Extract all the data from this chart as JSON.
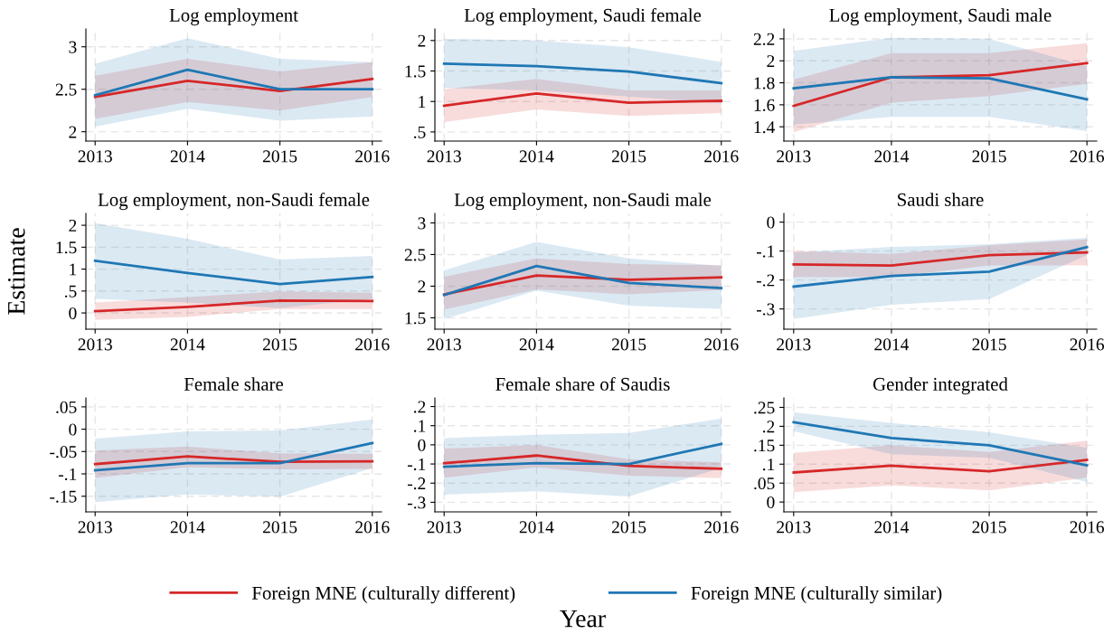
{
  "chart_data": [
    {
      "type": "line",
      "title": "Log employment",
      "x": [
        2013,
        2014,
        2015,
        2016
      ],
      "xlim": [
        2012.9,
        2016.1
      ],
      "xticks": [
        2013,
        2014,
        2015,
        2016
      ],
      "ylim": [
        1.89,
        3.21
      ],
      "yticks": [
        2,
        2.5,
        3
      ],
      "grid": true,
      "line_style": "solid",
      "series": [
        {
          "color": "#d62728",
          "values": [
            2.41,
            2.6,
            2.48,
            2.62
          ],
          "lower": [
            2.15,
            2.35,
            2.25,
            2.41
          ],
          "upper": [
            2.66,
            2.86,
            2.71,
            2.82
          ]
        },
        {
          "color": "#1f77b4",
          "values": [
            2.43,
            2.73,
            2.5,
            2.5
          ],
          "lower": [
            2.06,
            2.27,
            2.13,
            2.18
          ],
          "upper": [
            2.8,
            3.1,
            2.86,
            2.82
          ]
        }
      ]
    },
    {
      "type": "line",
      "title": "Log employment, Saudi female",
      "x": [
        2013,
        2014,
        2015,
        2016
      ],
      "xlim": [
        2012.9,
        2016.1
      ],
      "xticks": [
        2013,
        2014,
        2015,
        2016
      ],
      "ylim": [
        0.35,
        2.19
      ],
      "yticks": [
        {
          "value": 0.5,
          "label": ".5"
        },
        1,
        1.5,
        2
      ],
      "grid": true,
      "line_style": "solid",
      "series": [
        {
          "color": "#d62728",
          "values": [
            0.93,
            1.13,
            0.98,
            1.01
          ],
          "lower": [
            0.66,
            0.87,
            0.76,
            0.81
          ],
          "upper": [
            1.2,
            1.37,
            1.18,
            1.18
          ]
        },
        {
          "color": "#1f77b4",
          "values": [
            1.62,
            1.58,
            1.49,
            1.3
          ],
          "lower": [
            1.22,
            1.18,
            1.08,
            0.97
          ],
          "upper": [
            2.03,
            2.0,
            1.89,
            1.65
          ]
        }
      ]
    },
    {
      "type": "line",
      "title": "Log employment, Saudi male",
      "x": [
        2013,
        2014,
        2015,
        2016
      ],
      "xlim": [
        2012.9,
        2016.1
      ],
      "xticks": [
        2013,
        2014,
        2015,
        2016
      ],
      "ylim": [
        1.27,
        2.29
      ],
      "yticks": [
        1.4,
        1.6,
        1.8,
        2,
        2.2
      ],
      "grid": true,
      "line_style": "solid",
      "series": [
        {
          "color": "#d62728",
          "values": [
            1.59,
            1.85,
            1.87,
            1.98
          ],
          "lower": [
            1.35,
            1.62,
            1.68,
            1.79
          ],
          "upper": [
            1.83,
            2.07,
            2.07,
            2.16
          ]
        },
        {
          "color": "#1f77b4",
          "values": [
            1.75,
            1.85,
            1.84,
            1.65
          ],
          "lower": [
            1.42,
            1.49,
            1.49,
            1.36
          ],
          "upper": [
            2.09,
            2.21,
            2.2,
            1.95
          ]
        }
      ]
    },
    {
      "type": "line",
      "title": "Log employment, non-Saudi female",
      "ylabel": "Estimate",
      "x": [
        2013,
        2014,
        2015,
        2016
      ],
      "xlim": [
        2012.9,
        2016.1
      ],
      "xticks": [
        2013,
        2014,
        2015,
        2016
      ],
      "ylim": [
        -0.37,
        2.27
      ],
      "yticks": [
        0,
        {
          "value": 0.5,
          "label": ".5"
        },
        1,
        1.5,
        2
      ],
      "grid": true,
      "line_style": "solid",
      "series": [
        {
          "color": "#d62728",
          "values": [
            0.04,
            0.14,
            0.28,
            0.27
          ],
          "lower": [
            -0.16,
            -0.09,
            0.09,
            0.09
          ],
          "upper": [
            0.24,
            0.36,
            0.49,
            0.46
          ]
        },
        {
          "color": "#1f77b4",
          "values": [
            1.19,
            0.91,
            0.66,
            0.82
          ],
          "lower": [
            0.32,
            0.24,
            0.11,
            0.32
          ],
          "upper": [
            2.05,
            1.69,
            1.22,
            1.3
          ]
        }
      ]
    },
    {
      "type": "line",
      "title": "Log employment, non-Saudi male",
      "x": [
        2013,
        2014,
        2015,
        2016
      ],
      "xlim": [
        2012.9,
        2016.1
      ],
      "xticks": [
        2013,
        2014,
        2015,
        2016
      ],
      "ylim": [
        1.32,
        3.15
      ],
      "yticks": [
        1.5,
        2,
        2.5,
        3
      ],
      "grid": true,
      "line_style": "solid",
      "series": [
        {
          "color": "#d62728",
          "values": [
            1.87,
            2.17,
            2.1,
            2.14
          ],
          "lower": [
            1.63,
            1.95,
            1.87,
            1.94
          ],
          "upper": [
            2.15,
            2.44,
            2.35,
            2.33
          ]
        },
        {
          "color": "#1f77b4",
          "values": [
            1.86,
            2.32,
            2.05,
            1.97
          ],
          "lower": [
            1.48,
            1.93,
            1.69,
            1.64
          ],
          "upper": [
            2.25,
            2.7,
            2.44,
            2.32
          ]
        }
      ]
    },
    {
      "type": "line",
      "title": "Saudi share",
      "x": [
        2013,
        2014,
        2015,
        2016
      ],
      "xlim": [
        2012.9,
        2016.1
      ],
      "xticks": [
        2013,
        2014,
        2015,
        2016
      ],
      "ylim": [
        -0.37,
        0.03
      ],
      "yticks": [
        {
          "value": -0.3,
          "label": "-.3"
        },
        {
          "value": -0.2,
          "label": "-.2"
        },
        {
          "value": -0.1,
          "label": "-.1"
        },
        0
      ],
      "grid": true,
      "line_style": "solid",
      "series": [
        {
          "color": "#d62728",
          "values": [
            -0.146,
            -0.15,
            -0.114,
            -0.105
          ],
          "lower": [
            -0.19,
            -0.19,
            -0.15,
            -0.15
          ],
          "upper": [
            -0.1,
            -0.11,
            -0.08,
            -0.06
          ]
        },
        {
          "color": "#1f77b4",
          "values": [
            -0.223,
            -0.186,
            -0.171,
            -0.086
          ],
          "lower": [
            -0.335,
            -0.286,
            -0.266,
            -0.114
          ],
          "upper": [
            -0.105,
            -0.086,
            -0.076,
            -0.054
          ]
        }
      ]
    },
    {
      "type": "line",
      "title": "Female share",
      "x": [
        2013,
        2014,
        2015,
        2016
      ],
      "xlim": [
        2012.9,
        2016.1
      ],
      "xticks": [
        2013,
        2014,
        2015,
        2016
      ],
      "ylim": [
        -0.185,
        0.07
      ],
      "yticks": [
        {
          "value": -0.15,
          "label": "-.15"
        },
        {
          "value": -0.1,
          "label": "-.1"
        },
        {
          "value": -0.05,
          "label": "-.05"
        },
        0,
        {
          "value": 0.05,
          "label": ".05"
        }
      ],
      "grid": true,
      "line_style": "solid",
      "series": [
        {
          "color": "#d62728",
          "values": [
            -0.078,
            -0.061,
            -0.073,
            -0.072
          ],
          "lower": [
            -0.109,
            -0.085,
            -0.09,
            -0.089
          ],
          "upper": [
            -0.048,
            -0.039,
            -0.054,
            -0.055
          ]
        },
        {
          "color": "#1f77b4",
          "values": [
            -0.092,
            -0.076,
            -0.076,
            -0.031
          ],
          "lower": [
            -0.163,
            -0.146,
            -0.151,
            -0.087
          ],
          "upper": [
            -0.021,
            -0.005,
            -0.003,
            0.022
          ]
        }
      ]
    },
    {
      "type": "line",
      "title": "Female share of Saudis",
      "xlabel": "Year",
      "legend": "bottom",
      "x": [
        2013,
        2014,
        2015,
        2016
      ],
      "xlim": [
        2012.9,
        2016.1
      ],
      "xticks": [
        2013,
        2014,
        2015,
        2016
      ],
      "ylim": [
        -0.35,
        0.245
      ],
      "yticks": [
        {
          "value": -0.3,
          "label": "-.3"
        },
        {
          "value": -0.2,
          "label": "-.2"
        },
        {
          "value": -0.1,
          "label": "-.1"
        },
        0,
        {
          "value": 0.1,
          "label": ".1"
        },
        {
          "value": 0.2,
          "label": ".2"
        }
      ],
      "grid": true,
      "line_style": "solid",
      "series": [
        {
          "name": "Foreign MNE (culturally different)",
          "color": "#d62728",
          "values": [
            -0.096,
            -0.056,
            -0.11,
            -0.125
          ],
          "lower": [
            -0.172,
            -0.118,
            -0.161,
            -0.174
          ],
          "upper": [
            -0.02,
            0.0,
            -0.075,
            -0.092
          ]
        },
        {
          "name": "Foreign MNE (culturally similar)",
          "color": "#1f77b4",
          "values": [
            -0.114,
            -0.096,
            -0.1,
            0.005
          ],
          "lower": [
            -0.26,
            -0.242,
            -0.27,
            -0.12
          ],
          "upper": [
            0.035,
            0.053,
            0.062,
            0.137
          ]
        }
      ]
    },
    {
      "type": "line",
      "title": "Gender integrated",
      "x": [
        2013,
        2014,
        2015,
        2016
      ],
      "xlim": [
        2012.9,
        2016.1
      ],
      "xticks": [
        2013,
        2014,
        2015,
        2016
      ],
      "ylim": [
        -0.026,
        0.275
      ],
      "yticks": [
        0,
        {
          "value": 0.05,
          "label": ".05"
        },
        {
          "value": 0.1,
          "label": ".1"
        },
        {
          "value": 0.15,
          "label": ".15"
        },
        {
          "value": 0.2,
          "label": ".2"
        },
        {
          "value": 0.25,
          "label": ".25"
        }
      ],
      "grid": true,
      "line_style": "solid",
      "series": [
        {
          "color": "#d62728",
          "values": [
            0.078,
            0.096,
            0.081,
            0.111
          ],
          "lower": [
            0.026,
            0.044,
            0.031,
            0.064
          ],
          "upper": [
            0.13,
            0.15,
            0.132,
            0.162
          ]
        },
        {
          "color": "#1f77b4",
          "values": [
            0.211,
            0.169,
            0.15,
            0.097
          ],
          "lower": [
            0.187,
            0.126,
            0.117,
            0.053
          ],
          "upper": [
            0.237,
            0.209,
            0.184,
            0.143
          ]
        }
      ]
    }
  ]
}
